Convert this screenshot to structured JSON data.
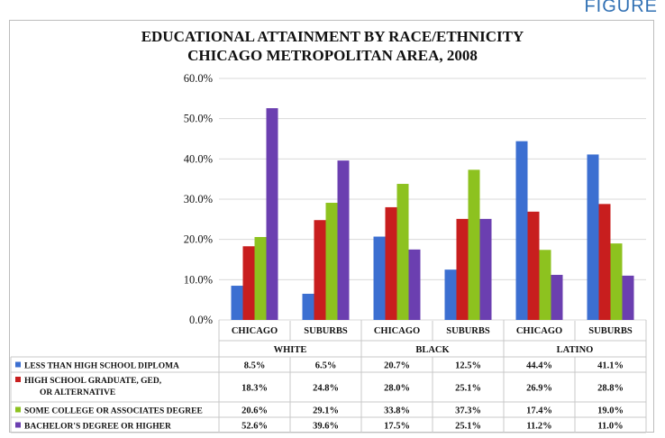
{
  "corner_label": "FIGURE",
  "chart_data": {
    "type": "bar",
    "title_lines": [
      "EDUCATIONAL ATTAINMENT BY RACE/ETHNICITY",
      "CHICAGO METROPOLITAN AREA, 2008"
    ],
    "ylim": [
      0,
      60
    ],
    "yticks": [
      "0.0%",
      "10.0%",
      "20.0%",
      "30.0%",
      "40.0%",
      "50.0%",
      "60.0%"
    ],
    "categories": [
      "CHICAGO",
      "SUBURBS",
      "CHICAGO",
      "SUBURBS",
      "CHICAGO",
      "SUBURBS"
    ],
    "groups": [
      "WHITE",
      "BLACK",
      "LATINO"
    ],
    "grid": true,
    "legend_placement": "table-below",
    "series": [
      {
        "name_lines": [
          "LESS THAN HIGH SCHOOL DIPLOMA"
        ],
        "color": "#3c6fd1",
        "values": [
          8.5,
          6.5,
          20.7,
          12.5,
          44.4,
          41.1
        ],
        "labels": [
          "8.5%",
          "6.5%",
          "20.7%",
          "12.5%",
          "44.4%",
          "41.1%"
        ]
      },
      {
        "name_lines": [
          "HIGH SCHOOL GRADUATE, GED,",
          "OR ALTERNATIVE"
        ],
        "color": "#c81e1e",
        "values": [
          18.3,
          24.8,
          28.0,
          25.1,
          26.9,
          28.8
        ],
        "labels": [
          "18.3%",
          "24.8%",
          "28.0%",
          "25.1%",
          "26.9%",
          "28.8%"
        ]
      },
      {
        "name_lines": [
          "SOME COLLEGE OR ASSOCIATES DEGREE"
        ],
        "color": "#8dc21f",
        "values": [
          20.6,
          29.1,
          33.8,
          37.3,
          17.4,
          19.0
        ],
        "labels": [
          "20.6%",
          "29.1%",
          "33.8%",
          "37.3%",
          "17.4%",
          "19.0%"
        ]
      },
      {
        "name_lines": [
          "BACHELOR'S DEGREE OR HIGHER"
        ],
        "color": "#6b3fb0",
        "values": [
          52.6,
          39.6,
          17.5,
          25.1,
          11.2,
          11.0
        ],
        "labels": [
          "52.6%",
          "39.6%",
          "17.5%",
          "25.1%",
          "11.2%",
          "11.0%"
        ]
      }
    ]
  }
}
